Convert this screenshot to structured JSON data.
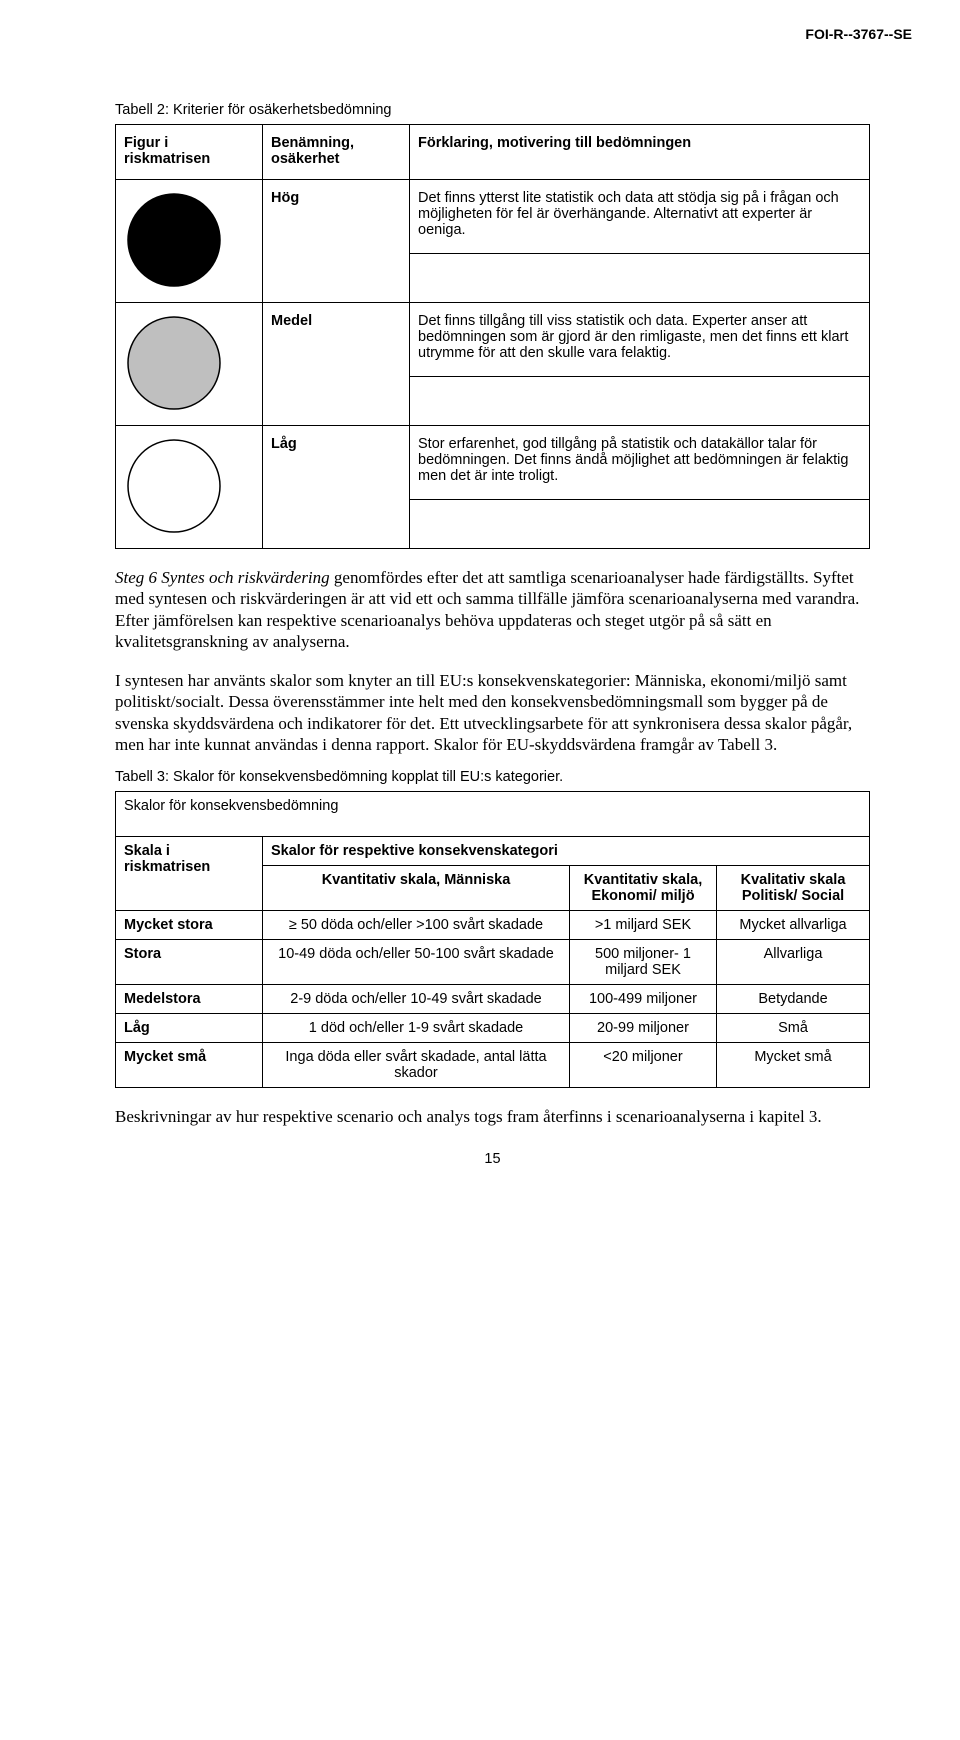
{
  "document_id": "FOI-R--3767--SE",
  "table2": {
    "caption": "Tabell 2: Kriterier för osäkerhetsbedömning",
    "headers": {
      "figure": "Figur i riskmatrisen",
      "label": "Benämning, osäkerhet",
      "explanation": "Förklaring, motivering till bedömningen"
    },
    "rows": [
      {
        "label": "Hög",
        "explanation": "Det finns ytterst lite statistik och data att stödja sig på i frågan och möjligheten för fel är överhängande. Alternativt att experter är oeniga.",
        "circle": {
          "fill": "#000000",
          "stroke": "#000000",
          "r": 46
        }
      },
      {
        "label": "Medel",
        "explanation": "Det finns tillgång till viss statistik och data. Experter anser att bedömningen som är gjord är den rimligaste, men det finns ett klart utrymme för att den skulle vara felaktig.",
        "circle": {
          "fill": "#bfbfbf",
          "stroke": "#000000",
          "r": 46
        }
      },
      {
        "label": "Låg",
        "explanation": "Stor erfarenhet, god tillgång på statistik och datakällor talar för bedömningen. Det finns ändå möjlighet att bedömningen är felaktig men det är inte troligt.",
        "circle": {
          "fill": "#ffffff",
          "stroke": "#000000",
          "r": 46
        }
      }
    ]
  },
  "paragraphs": {
    "p1_lead": "Steg 6 Syntes och riskvärdering",
    "p1_rest": " genomfördes efter det att samtliga scenarioanalyser hade färdigställts. Syftet med syntesen och riskvärderingen är att vid ett och samma tillfälle jämföra scenarioanalyserna med varandra. Efter jämförelsen kan respektive scenarioanalys behöva uppdateras och steget utgör på så sätt en kvalitetsgranskning av analyserna.",
    "p2": "I syntesen har använts skalor som knyter an till EU:s konsekvenskategorier: Människa, ekonomi/miljö samt politiskt/socialt. Dessa överensstämmer inte helt med den konsekvensbedömningsmall som bygger på de svenska skyddsvärdena och indikatorer för det. Ett utvecklingsarbete för att synkronisera dessa skalor pågår, men har inte kunnat användas i denna rapport. Skalor för EU-skyddsvärdena framgår av Tabell 3.",
    "p3": "Beskrivningar av hur respektive scenario och analys togs fram återfinns i scenarioanalyserna i kapitel 3."
  },
  "table3": {
    "caption": "Tabell 3: Skalor för konsekvensbedömning kopplat till EU:s kategorier.",
    "title": "Skalor för konsekvensbedömning",
    "headers": {
      "row_label": "Skala i riskmatrisen",
      "group": "Skalor för respektive konsekvenskategori",
      "c1": "Kvantitativ skala, Människa",
      "c2": "Kvantitativ skala, Ekonomi/ miljö",
      "c3": "Kvalitativ skala Politisk/ Social"
    },
    "rows": [
      {
        "label": "Mycket stora",
        "c1": "≥ 50 döda och/eller >100 svårt skadade",
        "c2": ">1 miljard SEK",
        "c3": "Mycket allvarliga"
      },
      {
        "label": "Stora",
        "c1": "10-49 döda och/eller 50-100 svårt skadade",
        "c2": "500 miljoner- 1 miljard SEK",
        "c3": "Allvarliga"
      },
      {
        "label": "Medelstora",
        "c1": "2-9 döda och/eller 10-49 svårt skadade",
        "c2": "100-499 miljoner",
        "c3": "Betydande"
      },
      {
        "label": "Låg",
        "c1": "1 död och/eller 1-9 svårt skadade",
        "c2": "20-99 miljoner",
        "c3": "Små"
      },
      {
        "label": "Mycket små",
        "c1": "Inga döda eller svårt skadade, antal lätta skador",
        "c2": "<20 miljoner",
        "c3": "Mycket små"
      }
    ]
  },
  "page_number": "15"
}
